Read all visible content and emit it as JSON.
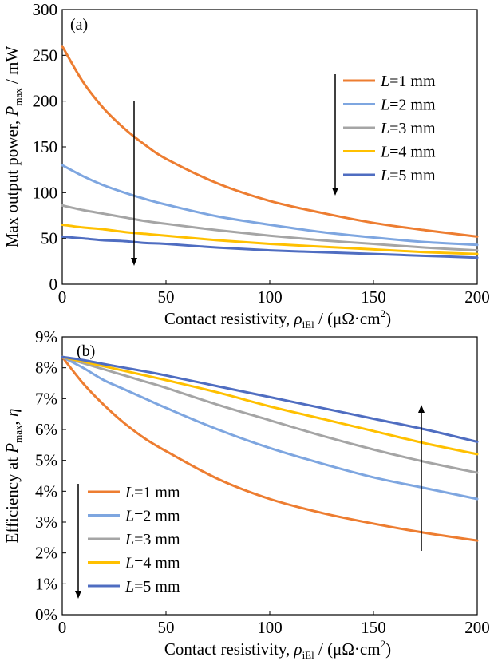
{
  "chart_data": [
    {
      "type": "line",
      "panel_label": "(a)",
      "xlabel": {
        "pre": "Contact resistivity, ",
        "sym": "ρ",
        "sub": "iEl",
        "post": " / (μΩ·cm",
        "sup": "2",
        "end": ")"
      },
      "ylabel": {
        "pre": "Max output power, ",
        "sym": "P",
        "sub": "max",
        "post": " / mW"
      },
      "xlim": [
        0,
        200
      ],
      "ylim": [
        0,
        300
      ],
      "xticks": [
        0,
        50,
        100,
        150,
        200
      ],
      "yticks": [
        0,
        50,
        100,
        150,
        200,
        250,
        300
      ],
      "ytick_labels": [
        "0",
        "50",
        "100",
        "150",
        "200",
        "250",
        "300"
      ],
      "xtick_labels": [
        "0",
        "50",
        "100",
        "150",
        "200"
      ],
      "legend_position": "top-right",
      "arrow_direction": "down",
      "x": [
        0,
        10,
        20,
        30,
        40,
        50,
        75,
        100,
        125,
        150,
        175,
        200
      ],
      "series": [
        {
          "name": "L=1 mm",
          "color": "#ED7D31",
          "values": [
            260,
            221,
            192,
            170,
            152,
            137,
            110,
            91,
            78,
            67,
            59,
            52
          ]
        },
        {
          "name": "L=2 mm",
          "color": "#7EA6E0",
          "values": [
            130,
            118,
            108,
            100,
            93,
            87,
            74,
            65,
            57,
            51,
            46,
            43
          ]
        },
        {
          "name": "L=3 mm",
          "color": "#A5A5A5",
          "values": [
            86,
            81,
            77,
            73,
            69,
            66,
            59,
            53,
            48,
            44,
            40,
            37
          ]
        },
        {
          "name": "L=4 mm",
          "color": "#FFC000",
          "values": [
            65,
            62,
            60,
            57,
            55,
            53,
            48,
            44,
            41,
            38,
            35,
            33
          ]
        },
        {
          "name": "L=5 mm",
          "color": "#4F6DC1",
          "values": [
            52,
            50,
            48,
            47,
            45,
            44,
            40,
            37,
            35,
            33,
            31,
            29
          ]
        }
      ]
    },
    {
      "type": "line",
      "panel_label": "(b)",
      "xlabel": {
        "pre": "Contact resistivity, ",
        "sym": "ρ",
        "sub": "iEl",
        "post": " / (μΩ·cm",
        "sup": "2",
        "end": ")"
      },
      "ylabel": {
        "pre": "Efficiency at ",
        "sym": "P",
        "sub": "max",
        "post": ", ",
        "sym2": "η"
      },
      "xlim": [
        0,
        200
      ],
      "ylim": [
        0,
        9
      ],
      "xticks": [
        0,
        50,
        100,
        150,
        200
      ],
      "yticks": [
        0,
        1,
        2,
        3,
        4,
        5,
        6,
        7,
        8,
        9
      ],
      "ytick_labels": [
        "0%",
        "1%",
        "2%",
        "3%",
        "4%",
        "5%",
        "6%",
        "7%",
        "8%",
        "9%"
      ],
      "xtick_labels": [
        "0",
        "50",
        "100",
        "150",
        "200"
      ],
      "legend_position": "bottom-left",
      "arrow_direction": "up",
      "x": [
        0,
        10,
        20,
        30,
        40,
        50,
        75,
        100,
        125,
        150,
        175,
        200
      ],
      "series": [
        {
          "name": "L=1 mm",
          "color": "#ED7D31",
          "values": [
            8.35,
            7.5,
            6.8,
            6.2,
            5.7,
            5.3,
            4.4,
            3.75,
            3.3,
            2.95,
            2.65,
            2.4
          ]
        },
        {
          "name": "L=2 mm",
          "color": "#7EA6E0",
          "values": [
            8.35,
            8.0,
            7.6,
            7.3,
            7.0,
            6.7,
            6.0,
            5.4,
            4.9,
            4.45,
            4.1,
            3.75
          ]
        },
        {
          "name": "L=3 mm",
          "color": "#A5A5A5",
          "values": [
            8.35,
            8.15,
            7.95,
            7.75,
            7.55,
            7.35,
            6.8,
            6.3,
            5.8,
            5.35,
            4.95,
            4.6
          ]
        },
        {
          "name": "L=4 mm",
          "color": "#FFC000",
          "values": [
            8.35,
            8.2,
            8.05,
            7.9,
            7.75,
            7.6,
            7.2,
            6.75,
            6.35,
            5.95,
            5.55,
            5.2
          ]
        },
        {
          "name": "L=5 mm",
          "color": "#4F6DC1",
          "values": [
            8.35,
            8.25,
            8.12,
            8.0,
            7.88,
            7.75,
            7.4,
            7.05,
            6.7,
            6.35,
            6.0,
            5.6
          ]
        }
      ]
    }
  ]
}
